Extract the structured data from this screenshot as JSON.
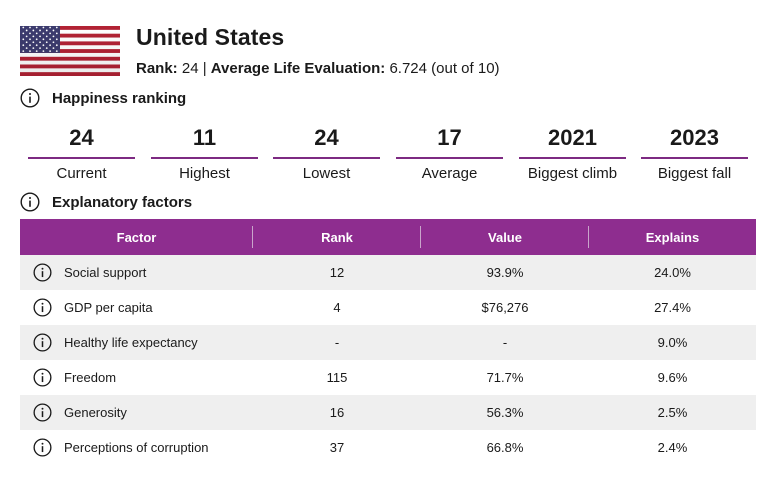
{
  "header": {
    "country": "United States",
    "rank_label": "Rank:",
    "rank_value": "24 |",
    "eval_label": "Average Life Evaluation:",
    "eval_value": "6.724 (out of 10)",
    "flag_icon": "us-flag-icon"
  },
  "happiness": {
    "title": "Happiness ranking",
    "stats": [
      {
        "value": "24",
        "label": "Current"
      },
      {
        "value": "11",
        "label": "Highest"
      },
      {
        "value": "24",
        "label": "Lowest"
      },
      {
        "value": "17",
        "label": "Average"
      },
      {
        "value": "2021",
        "label": "Biggest climb"
      },
      {
        "value": "2023",
        "label": "Biggest fall"
      }
    ]
  },
  "factors": {
    "title": "Explanatory factors",
    "columns": [
      "Factor",
      "Rank",
      "Value",
      "Explains"
    ],
    "rows": [
      {
        "factor": "Social support",
        "rank": "12",
        "value": "93.9%",
        "explains": "24.0%"
      },
      {
        "factor": "GDP per capita",
        "rank": "4",
        "value": "$76,276",
        "explains": "27.4%"
      },
      {
        "factor": "Healthy life expectancy",
        "rank": "-",
        "value": "-",
        "explains": "9.0%"
      },
      {
        "factor": "Freedom",
        "rank": "115",
        "value": "71.7%",
        "explains": "9.6%"
      },
      {
        "factor": "Generosity",
        "rank": "16",
        "value": "56.3%",
        "explains": "2.5%"
      },
      {
        "factor": "Perceptions of corruption",
        "rank": "37",
        "value": "66.8%",
        "explains": "2.4%"
      }
    ]
  },
  "colors": {
    "accent": "#8e2d8f",
    "underline": "#7d2a82",
    "row_alt": "#efefef"
  }
}
